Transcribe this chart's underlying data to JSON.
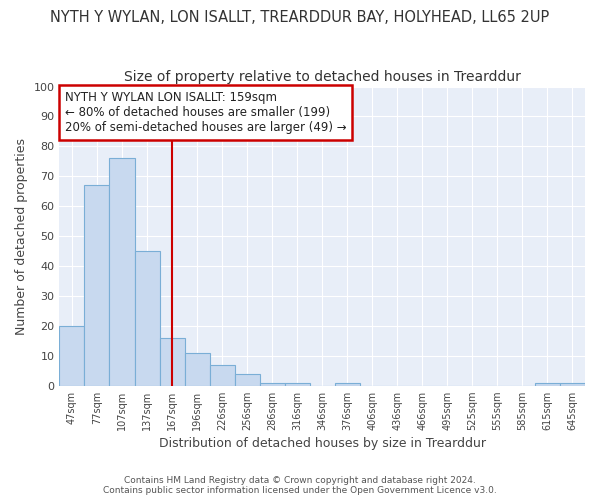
{
  "title": "NYTH Y WYLAN, LON ISALLT, TREARDDUR BAY, HOLYHEAD, LL65 2UP",
  "subtitle": "Size of property relative to detached houses in Trearddur",
  "xlabel": "Distribution of detached houses by size in Trearddur",
  "ylabel": "Number of detached properties",
  "categories": [
    "47sqm",
    "77sqm",
    "107sqm",
    "137sqm",
    "167sqm",
    "196sqm",
    "226sqm",
    "256sqm",
    "286sqm",
    "316sqm",
    "346sqm",
    "376sqm",
    "406sqm",
    "436sqm",
    "466sqm",
    "495sqm",
    "525sqm",
    "555sqm",
    "585sqm",
    "615sqm",
    "645sqm"
  ],
  "values": [
    20,
    67,
    76,
    45,
    16,
    11,
    7,
    4,
    1,
    1,
    0,
    1,
    0,
    0,
    0,
    0,
    0,
    0,
    0,
    1,
    1
  ],
  "bar_color": "#c8d9ef",
  "bar_edge_color": "#7aaed6",
  "ylim": [
    0,
    100
  ],
  "yticks": [
    0,
    10,
    20,
    30,
    40,
    50,
    60,
    70,
    80,
    90,
    100
  ],
  "red_line_x": 4,
  "annotation_title": "NYTH Y WYLAN LON ISALLT: 159sqm",
  "annotation_line2": "← 80% of detached houses are smaller (199)",
  "annotation_line3": "20% of semi-detached houses are larger (49) →",
  "annotation_box_color": "#ffffff",
  "annotation_box_edge": "#cc0000",
  "red_line_color": "#cc0000",
  "footer1": "Contains HM Land Registry data © Crown copyright and database right 2024.",
  "footer2": "Contains public sector information licensed under the Open Government Licence v3.0.",
  "background_color": "#ffffff",
  "plot_bg_color": "#e8eef8",
  "grid_color": "#ffffff",
  "title_fontsize": 10.5,
  "subtitle_fontsize": 10
}
